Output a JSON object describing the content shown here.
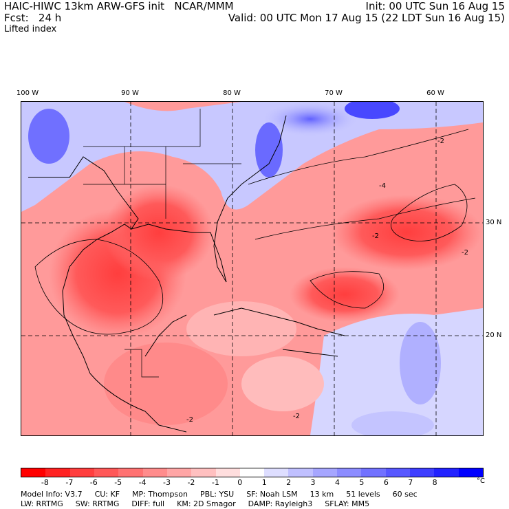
{
  "header": {
    "line1_left": "HAIC-HIWC 13km ARW-GFS init   NCAR/MMM",
    "line2_left": "Fcst:   24 h",
    "line1_right": "Init: 00 UTC Sun 16 Aug 15",
    "line2_right": "Valid: 00 UTC Mon 17 Aug 15 (22 LDT Sun 16 Aug 15)",
    "field": "Lifted index"
  },
  "map": {
    "lon_labels": [
      "100 W",
      "90 W",
      "80 W",
      "70 W",
      "60 W"
    ],
    "lat_labels": [
      "30 N",
      "20 N"
    ],
    "contour_label": "-2",
    "contour_label_4": "-4"
  },
  "colorbar": {
    "unit": "°C",
    "ticks": [
      "-8",
      "-7",
      "-6",
      "-5",
      "-4",
      "-3",
      "-2",
      "-1",
      "0",
      "1",
      "2",
      "3",
      "4",
      "5",
      "6",
      "7",
      "8"
    ],
    "colors": [
      "#ff0000",
      "#ff2222",
      "#ff3e3e",
      "#ff5858",
      "#ff7272",
      "#ff8c8c",
      "#ffa6a6",
      "#ffc0c0",
      "#ffdede",
      "#ffffff",
      "#dedeff",
      "#c0c0ff",
      "#a6a6ff",
      "#8c8cff",
      "#7272ff",
      "#5858ff",
      "#3e3eff",
      "#2222ff",
      "#0000ff"
    ]
  },
  "model_info": {
    "line1": [
      "Model Info: V3.7",
      "CU: KF",
      "MP: Thompson",
      "PBL: YSU",
      "SF: Noah LSM",
      "13 km",
      "51 levels",
      "60 sec"
    ],
    "line2": [
      "LW: RRTMG",
      "SW: RRTMG",
      "DIFF: full",
      "KM: 2D Smagor",
      "DAMP: Rayleigh3",
      "SFLAY: MM5"
    ]
  }
}
